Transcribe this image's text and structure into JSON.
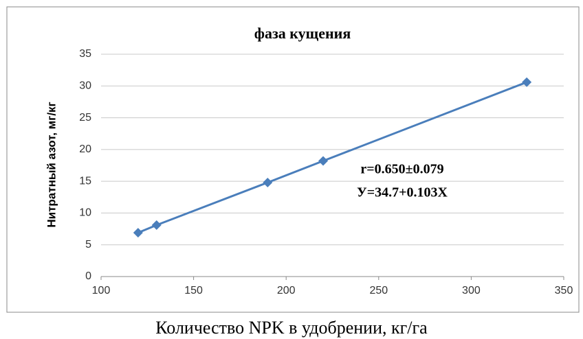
{
  "chart_data": {
    "type": "line",
    "title": "фаза кущения",
    "y_label": "Нитратный азот, мг/кг",
    "x_label": "Количество NPK в удобрении, кг/га",
    "annotations": [
      "r=0.650±0.079",
      "У=34.7+0.103X"
    ],
    "x": [
      120,
      130,
      190,
      220,
      330
    ],
    "series": [
      {
        "name": "Нитратный азот",
        "color": "#4a7ebb",
        "values": [
          6.9,
          8.1,
          14.8,
          18.2,
          30.6
        ]
      }
    ],
    "xlim": [
      100,
      350
    ],
    "xticks": [
      100,
      150,
      200,
      250,
      300,
      350
    ],
    "ylim": [
      0,
      35
    ],
    "yticks": [
      0,
      5,
      10,
      15,
      20,
      25,
      30,
      35
    ],
    "grid": true,
    "markers": "diamond"
  }
}
